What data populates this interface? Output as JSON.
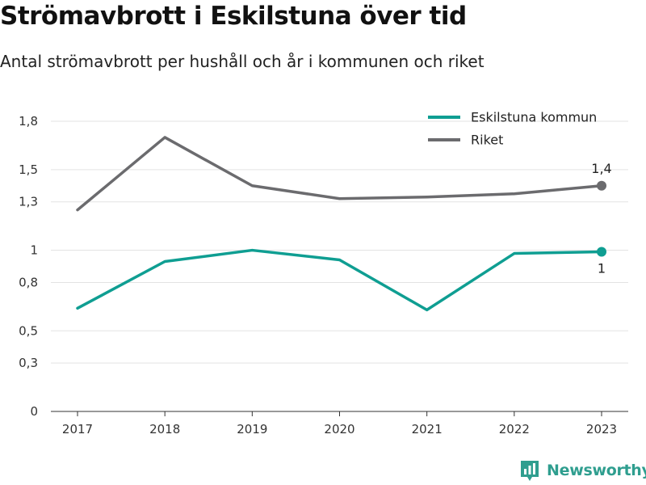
{
  "title": "Strömavbrott i Eskilstuna över tid",
  "subtitle": "Antal strömavbrott per hushåll och år i kommunen och riket",
  "brand": {
    "name": "Newsworthy",
    "icon": "newsworthy-logo-icon",
    "color": "#2f9e8f"
  },
  "chart_data": {
    "type": "line",
    "categories": [
      "2017",
      "2018",
      "2019",
      "2020",
      "2021",
      "2022",
      "2023"
    ],
    "series": [
      {
        "name": "Eskilstuna kommun",
        "color": "#0f9e92",
        "values": [
          0.64,
          0.93,
          1.0,
          0.94,
          0.63,
          0.98,
          0.99
        ],
        "end_label": "1"
      },
      {
        "name": "Riket",
        "color": "#6b6b6e",
        "values": [
          1.25,
          1.7,
          1.4,
          1.32,
          1.33,
          1.35,
          1.4
        ],
        "end_label": "1,4"
      }
    ],
    "yticks": [
      {
        "value": 0,
        "label": "0"
      },
      {
        "value": 0.3,
        "label": "0,3"
      },
      {
        "value": 0.5,
        "label": "0,5"
      },
      {
        "value": 0.8,
        "label": "0,8"
      },
      {
        "value": 1,
        "label": "1"
      },
      {
        "value": 1.3,
        "label": "1,3"
      },
      {
        "value": 1.5,
        "label": "1,5"
      },
      {
        "value": 1.8,
        "label": "1,8"
      }
    ],
    "ylim": [
      0,
      1.8
    ],
    "grid": true,
    "legend_position": "top-right",
    "xlabel": "",
    "ylabel": ""
  }
}
